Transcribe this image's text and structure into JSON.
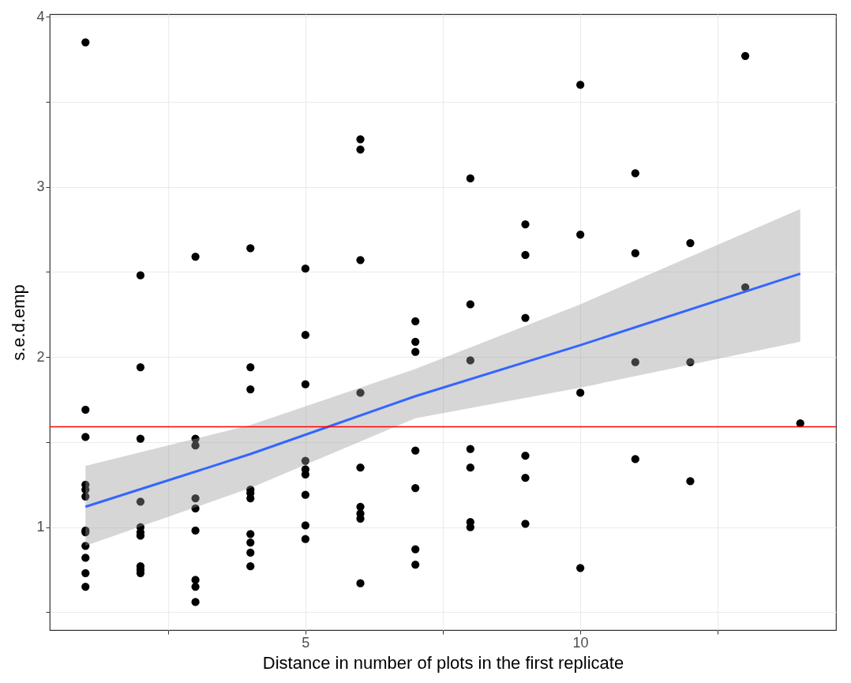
{
  "chart_data": {
    "type": "scatter",
    "xlabel": "Distance in number of plots in the first replicate",
    "ylabel": "s.e.d.emp",
    "xlim": [
      0.35,
      14.65
    ],
    "ylim": [
      0.395,
      4.015
    ],
    "xticks": [
      {
        "value": 2.5,
        "label": null
      },
      5,
      {
        "value": 7.5,
        "label": null
      },
      10,
      {
        "value": 12.5,
        "label": null
      }
    ],
    "yticks": [
      {
        "value": 0.5,
        "label": null
      },
      1,
      {
        "value": 1.5,
        "label": null
      },
      2,
      {
        "value": 2.5,
        "label": null
      },
      3,
      {
        "value": 3.5,
        "label": null
      },
      4
    ],
    "grid": true,
    "series": [
      {
        "color": "#000000",
        "marker": "circle",
        "x": [
          1,
          1,
          1,
          1,
          1,
          1,
          1,
          1,
          1,
          1,
          1,
          1,
          2,
          2,
          2,
          2,
          2,
          2,
          2,
          2,
          2,
          2,
          3,
          3,
          3,
          3,
          3,
          3,
          3,
          3,
          3,
          4,
          4,
          4,
          4,
          4,
          4,
          4,
          4,
          4,
          4,
          5,
          5,
          5,
          5,
          5,
          5,
          5,
          5,
          5,
          6,
          6,
          6,
          6,
          6,
          6,
          6,
          6,
          6,
          7,
          7,
          7,
          7,
          7,
          7,
          7,
          8,
          8,
          8,
          8,
          8,
          8,
          8,
          9,
          9,
          9,
          9,
          9,
          9,
          10,
          10,
          10,
          10,
          11,
          11,
          11,
          11,
          12,
          12,
          12,
          13,
          13,
          14
        ],
        "values": [
          3.85,
          1.69,
          1.53,
          1.25,
          1.22,
          1.18,
          0.98,
          0.97,
          0.89,
          0.82,
          0.73,
          0.65,
          2.48,
          1.94,
          1.52,
          1.15,
          1.0,
          0.97,
          0.95,
          0.77,
          0.75,
          0.73,
          2.59,
          1.52,
          1.48,
          1.17,
          1.11,
          0.98,
          0.69,
          0.65,
          0.56,
          2.64,
          1.94,
          1.81,
          1.22,
          1.2,
          1.17,
          0.96,
          0.91,
          0.85,
          0.77,
          2.52,
          2.13,
          1.84,
          1.39,
          1.34,
          1.31,
          1.19,
          1.01,
          0.93,
          3.28,
          3.22,
          2.57,
          1.79,
          1.35,
          1.12,
          1.08,
          1.05,
          0.67,
          2.21,
          2.09,
          2.03,
          1.45,
          1.23,
          0.87,
          0.78,
          3.05,
          2.31,
          1.98,
          1.46,
          1.35,
          1.03,
          1.0,
          2.78,
          2.6,
          2.23,
          1.42,
          1.29,
          1.02,
          3.6,
          2.72,
          1.79,
          0.76,
          3.08,
          2.61,
          1.97,
          1.4,
          2.67,
          1.97,
          1.27,
          3.77,
          2.41,
          1.61
        ]
      },
      {
        "type": "line",
        "marker": "none",
        "color": "#3366ff",
        "line_style": "solid",
        "x": [
          1,
          4,
          7,
          10,
          14
        ],
        "values": [
          1.12,
          1.43,
          1.77,
          2.07,
          2.49
        ],
        "lower": [
          0.89,
          1.23,
          1.64,
          1.82,
          2.09
        ],
        "upper": [
          1.36,
          1.6,
          1.93,
          2.31,
          2.87
        ]
      }
    ],
    "ref_lines": [
      {
        "axis": "y",
        "value": 1.59,
        "color": "#ff0000"
      }
    ]
  }
}
